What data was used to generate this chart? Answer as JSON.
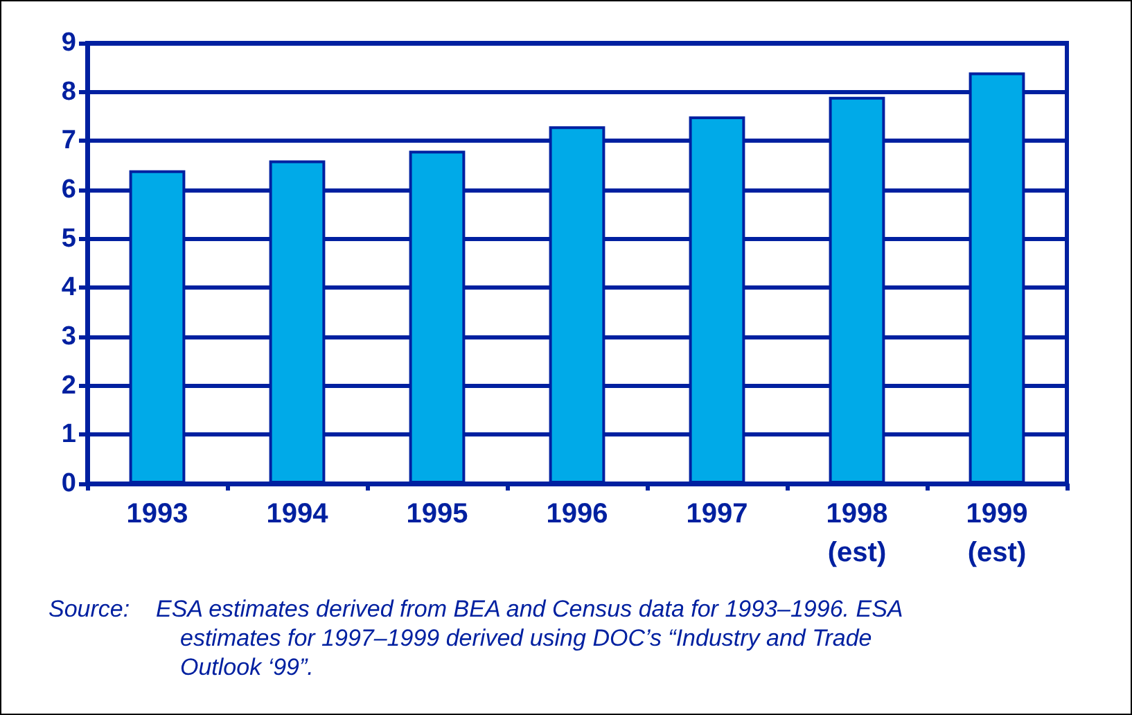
{
  "chart_data": {
    "type": "bar",
    "categories": [
      "1993",
      "1994",
      "1995",
      "1996",
      "1997",
      "1998\n(est)",
      "1999\n(est)"
    ],
    "values": [
      6.4,
      6.6,
      6.8,
      7.3,
      7.5,
      7.9,
      8.4
    ],
    "color": "#00aae8",
    "ylim": [
      0,
      9
    ],
    "yticks": [
      0,
      1,
      2,
      3,
      4,
      5,
      6,
      7,
      8,
      9
    ],
    "grid": "y",
    "annotations": [
      "Source:    ESA estimates derived from BEA and Census data for 1993–1996. ESA estimates for 1997–1999 derived using DOC’s “Industry and Trade Outlook ‘99”."
    ]
  }
}
